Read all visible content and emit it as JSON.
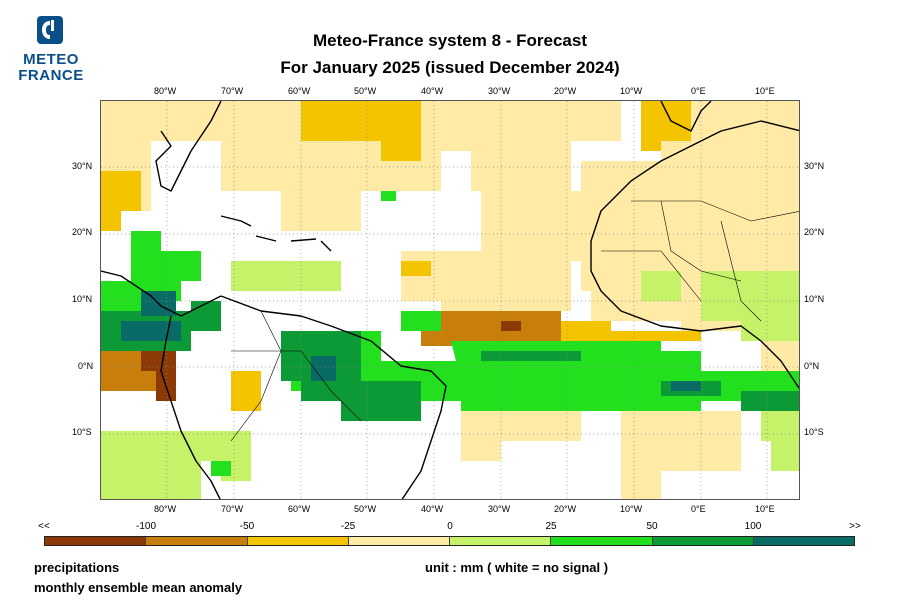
{
  "logo": {
    "line1": "METEO",
    "line2": "FRANCE",
    "brand_color": "#0a4f8a"
  },
  "title": {
    "line1": "Meteo-France system 8  -  Forecast",
    "line2": "For January 2025      (issued December 2024)"
  },
  "map": {
    "lon_labels": [
      "80°W",
      "70°W",
      "60°W",
      "50°W",
      "40°W",
      "30°W",
      "20°W",
      "10°W",
      "0°E",
      "10°E"
    ],
    "lat_labels": [
      "30°N",
      "20°N",
      "10°N",
      "0°N",
      "10°S"
    ],
    "region": "Tropical Atlantic",
    "lon_range": [
      -90,
      15
    ],
    "lat_range": [
      -20,
      40
    ],
    "ocean_color": "#ffffff",
    "coast_color": "#000000",
    "grid": "dotted"
  },
  "colorbar": {
    "labels": [
      "<<",
      "-100",
      "-50",
      "-25",
      "0",
      "25",
      "50",
      "100",
      ">>"
    ],
    "colors": [
      "#8b3a05",
      "#c87e0b",
      "#f5c400",
      "#ffeaa6",
      "#c6f26a",
      "#22e01e",
      "#0c9a36",
      "#0a6a66"
    ]
  },
  "footer": {
    "variable": "precipitations",
    "description": "monthly ensemble mean anomaly",
    "unit": "unit : mm  ( white = no signal )"
  }
}
